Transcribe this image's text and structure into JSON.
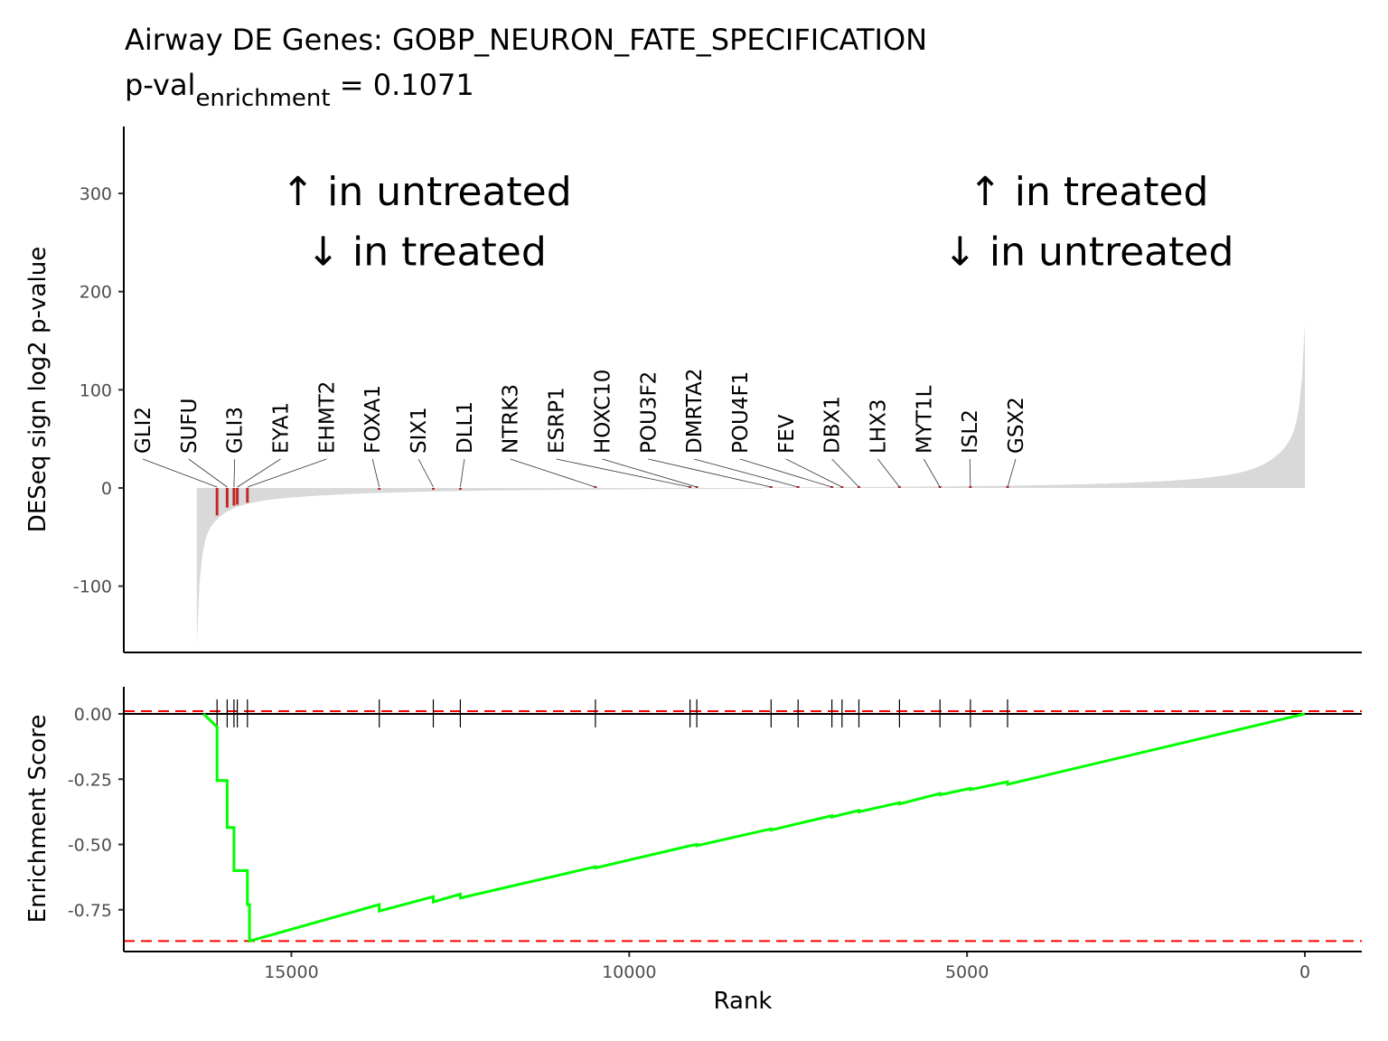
{
  "chart_data": {
    "type": "line",
    "title": "Airway DE Genes: GOBP_NEURON_FATE_SPECIFICATION",
    "subtitle": {
      "prefix": "p-val",
      "subscript": "enrichment",
      "suffix": " = 0.1071"
    },
    "rank_range": [
      0,
      16400
    ],
    "top_panel": {
      "ylabel": "DESeq sign log2 p-value",
      "yticks": [
        -100,
        0,
        100,
        200,
        300
      ],
      "yticklabels": [
        "-100",
        "0",
        "100",
        "200",
        "300"
      ],
      "ylim": [
        -160,
        365
      ],
      "annotations": [
        {
          "text": "↑ in untreated",
          "rank": 13000,
          "y": 288
        },
        {
          "text": "↓ in treated",
          "rank": 13000,
          "y": 227
        },
        {
          "text": "↑ in treated",
          "rank": 3200,
          "y": 288
        },
        {
          "text": "↓ in untreated",
          "rank": 3200,
          "y": 227
        }
      ],
      "genes": [
        {
          "name": "GLI2",
          "rank": 16100,
          "value": -28
        },
        {
          "name": "SUFU",
          "rank": 15950,
          "value": -20
        },
        {
          "name": "GLI3",
          "rank": 15850,
          "value": -18
        },
        {
          "name": "EYA1",
          "rank": 15800,
          "value": -17
        },
        {
          "name": "EHMT2",
          "rank": 15650,
          "value": -15
        },
        {
          "name": "FOXA1",
          "rank": 13700,
          "value": -1.5
        },
        {
          "name": "SIX1",
          "rank": 12900,
          "value": -1
        },
        {
          "name": "DLL1",
          "rank": 12500,
          "value": -1
        },
        {
          "name": "NTRK3",
          "rank": 10500,
          "value": 0
        },
        {
          "name": "ESRP1",
          "rank": 9100,
          "value": 0
        },
        {
          "name": "HOXC10",
          "rank": 9000,
          "value": 0
        },
        {
          "name": "POU3F2",
          "rank": 7900,
          "value": 0
        },
        {
          "name": "DMRTA2",
          "rank": 7500,
          "value": 0
        },
        {
          "name": "POU4F1",
          "rank": 7000,
          "value": 0
        },
        {
          "name": "FEV",
          "rank": 6850,
          "value": 0
        },
        {
          "name": "DBX1",
          "rank": 6600,
          "value": 0
        },
        {
          "name": "LHX3",
          "rank": 6000,
          "value": 0
        },
        {
          "name": "MYT1L",
          "rank": 5400,
          "value": 0
        },
        {
          "name": "ISL2",
          "rank": 4950,
          "value": 0
        },
        {
          "name": "GSX2",
          "rank": 4400,
          "value": 0
        }
      ]
    },
    "bottom_panel": {
      "ylabel": "Enrichment Score",
      "xlabel": "Rank",
      "yticks": [
        0,
        -0.25,
        -0.5,
        -0.75
      ],
      "yticklabels": [
        "0.00",
        "-0.25",
        "-0.50",
        "-0.75"
      ],
      "ylim": [
        -0.9,
        0.1
      ],
      "xticks": [
        15000,
        10000,
        5000,
        0
      ],
      "xticklabels": [
        "15000",
        "10000",
        "5000",
        "0"
      ],
      "max_deviation": -0.87,
      "running_score": [
        [
          16300,
          0.0
        ],
        [
          16100,
          -0.05
        ],
        [
          16100,
          -0.255
        ],
        [
          15950,
          -0.255
        ],
        [
          15950,
          -0.435
        ],
        [
          15850,
          -0.435
        ],
        [
          15850,
          -0.6
        ],
        [
          15650,
          -0.6
        ],
        [
          15650,
          -0.73
        ],
        [
          15620,
          -0.73
        ],
        [
          15620,
          -0.87
        ],
        [
          13700,
          -0.73
        ],
        [
          13700,
          -0.755
        ],
        [
          12900,
          -0.7
        ],
        [
          12900,
          -0.72
        ],
        [
          12500,
          -0.69
        ],
        [
          12500,
          -0.705
        ],
        [
          10500,
          -0.585
        ],
        [
          10500,
          -0.59
        ],
        [
          9100,
          -0.505
        ],
        [
          9000,
          -0.5
        ],
        [
          9000,
          -0.505
        ],
        [
          7900,
          -0.44
        ],
        [
          7900,
          -0.445
        ],
        [
          7500,
          -0.42
        ],
        [
          7000,
          -0.39
        ],
        [
          7000,
          -0.395
        ],
        [
          6850,
          -0.385
        ],
        [
          6600,
          -0.37
        ],
        [
          6600,
          -0.375
        ],
        [
          6000,
          -0.34
        ],
        [
          6000,
          -0.345
        ],
        [
          5400,
          -0.305
        ],
        [
          5400,
          -0.31
        ],
        [
          4950,
          -0.285
        ],
        [
          4950,
          -0.29
        ],
        [
          4400,
          -0.26
        ],
        [
          4400,
          -0.27
        ],
        [
          0,
          0.0
        ]
      ]
    },
    "colors": {
      "fill": "#d9d9d9",
      "gene_bar": "#c0282b",
      "es_line": "#00ff00",
      "ref_line": "#ff0000"
    }
  }
}
